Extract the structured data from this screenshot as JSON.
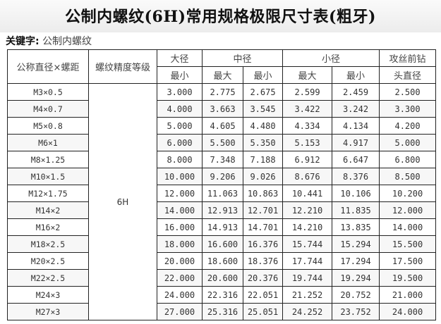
{
  "title": "公制内螺纹(6H)常用规格极限尺寸表(粗牙)",
  "keyword_label": "关键字:",
  "keyword_value": "公制内螺纹",
  "headers": {
    "nominal": "公称直径×螺距",
    "grade": "螺纹精度等级",
    "major": "大径",
    "pitch": "中径",
    "minor": "小径",
    "drill_line1": "攻丝前钻",
    "drill_line2": "头直径",
    "min": "最小",
    "max": "最大"
  },
  "grade_value": "6H",
  "rows": [
    [
      "M3×0.5",
      "3.000",
      "2.775",
      "2.675",
      "2.599",
      "2.459",
      "2.500"
    ],
    [
      "M4×0.7",
      "4.000",
      "3.663",
      "3.545",
      "3.422",
      "3.242",
      "3.300"
    ],
    [
      "M5×0.8",
      "5.000",
      "4.605",
      "4.480",
      "4.334",
      "4.134",
      "4.200"
    ],
    [
      "M6×1",
      "6.000",
      "5.500",
      "5.350",
      "5.153",
      "4.917",
      "5.000"
    ],
    [
      "M8×1.25",
      "8.000",
      "7.348",
      "7.188",
      "6.912",
      "6.647",
      "6.800"
    ],
    [
      "M10×1.5",
      "10.000",
      "9.206",
      "9.026",
      "8.676",
      "8.376",
      "8.500"
    ],
    [
      "M12×1.75",
      "12.000",
      "11.063",
      "10.863",
      "10.441",
      "10.106",
      "10.200"
    ],
    [
      "M14×2",
      "14.000",
      "12.913",
      "12.701",
      "12.210",
      "11.835",
      "12.000"
    ],
    [
      "M16×2",
      "16.000",
      "14.913",
      "14.701",
      "14.210",
      "13.835",
      "14.000"
    ],
    [
      "M18×2.5",
      "18.000",
      "16.600",
      "16.376",
      "15.744",
      "15.294",
      "15.500"
    ],
    [
      "M20×2.5",
      "20.000",
      "18.600",
      "18.376",
      "17.744",
      "17.294",
      "17.500"
    ],
    [
      "M22×2.5",
      "22.000",
      "20.600",
      "20.376",
      "19.744",
      "19.294",
      "19.500"
    ],
    [
      "M24×3",
      "24.000",
      "22.316",
      "22.051",
      "21.252",
      "20.752",
      "21.000"
    ],
    [
      "M27×3",
      "27.000",
      "25.316",
      "25.051",
      "24.252",
      "23.752",
      "24.000"
    ]
  ]
}
